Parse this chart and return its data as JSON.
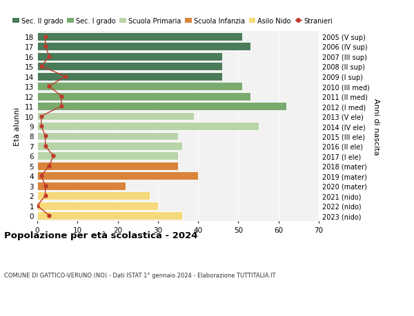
{
  "ages": [
    18,
    17,
    16,
    15,
    14,
    13,
    12,
    11,
    10,
    9,
    8,
    7,
    6,
    5,
    4,
    3,
    2,
    1,
    0
  ],
  "right_labels": [
    "2005 (V sup)",
    "2006 (IV sup)",
    "2007 (III sup)",
    "2008 (II sup)",
    "2009 (I sup)",
    "2010 (III med)",
    "2011 (II med)",
    "2012 (I med)",
    "2013 (V ele)",
    "2014 (IV ele)",
    "2015 (III ele)",
    "2016 (II ele)",
    "2017 (I ele)",
    "2018 (mater)",
    "2019 (mater)",
    "2020 (mater)",
    "2021 (nido)",
    "2022 (nido)",
    "2023 (nido)"
  ],
  "bar_values": [
    51,
    53,
    46,
    46,
    46,
    51,
    53,
    62,
    39,
    55,
    35,
    36,
    35,
    35,
    40,
    22,
    28,
    30,
    36
  ],
  "bar_colors": [
    "#4a7c59",
    "#4a7c59",
    "#4a7c59",
    "#4a7c59",
    "#4a7c59",
    "#7aab6e",
    "#7aab6e",
    "#7aab6e",
    "#b8d4a8",
    "#b8d4a8",
    "#b8d4a8",
    "#b8d4a8",
    "#b8d4a8",
    "#d9843a",
    "#d9843a",
    "#d9843a",
    "#f5d97a",
    "#f5d97a",
    "#f5d97a"
  ],
  "stranieri_values": [
    2,
    2,
    3,
    1,
    7,
    3,
    6,
    6,
    1,
    1,
    2,
    2,
    4,
    3,
    1,
    2,
    2,
    0,
    3
  ],
  "legend_labels": [
    "Sec. II grado",
    "Sec. I grado",
    "Scuola Primaria",
    "Scuola Infanzia",
    "Asilo Nido",
    "Stranieri"
  ],
  "legend_colors": [
    "#4a7c59",
    "#7aab6e",
    "#b8d4a8",
    "#d9843a",
    "#f5d97a",
    "#c0392b"
  ],
  "ylabel_left": "Età alunni",
  "ylabel_right": "Anni di nascita",
  "title": "Popolazione per età scolastica - 2024",
  "subtitle": "COMUNE DI GATTICO-VERUNO (NO) - Dati ISTAT 1° gennaio 2024 - Elaborazione TUTTITALIA.IT",
  "xlim": [
    0,
    70
  ],
  "xticks": [
    0,
    10,
    20,
    30,
    40,
    50,
    60,
    70
  ],
  "bg_color": "#ffffff",
  "plot_bg_color": "#f2f2f2",
  "stranieri_color": "#c0392b"
}
